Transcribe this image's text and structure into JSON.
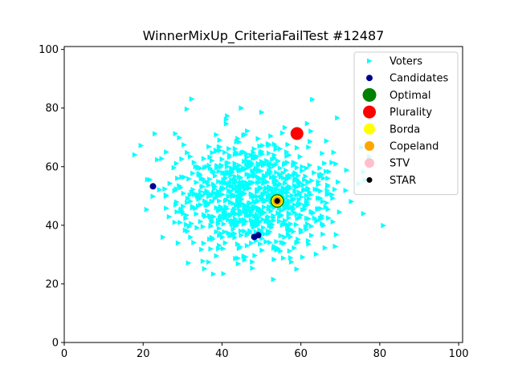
{
  "chart_data": {
    "type": "scatter",
    "title": "WinnerMixUp_CriteriaFailTest #12487",
    "xlim": [
      0,
      101
    ],
    "ylim": [
      0,
      101
    ],
    "x_ticks": [
      0,
      20,
      40,
      60,
      80,
      100
    ],
    "y_ticks": [
      0,
      20,
      40,
      60,
      80,
      100
    ],
    "legend_position": "top-right",
    "voters_cluster": {
      "center": [
        49,
        50
      ],
      "spread": [
        19,
        19
      ],
      "count": 900,
      "seed": 12487
    },
    "series": [
      {
        "name": "Voters",
        "marker": "triangle-right",
        "color": "#00ffff"
      },
      {
        "name": "Candidates",
        "marker": "circle",
        "color": "#00008b",
        "points": [
          [
            22.5,
            53.3
          ],
          [
            48.2,
            36.0
          ],
          [
            49.2,
            36.6
          ],
          [
            54.0,
            48.3
          ]
        ]
      },
      {
        "name": "Optimal",
        "marker": "circle",
        "color": "#008000",
        "points": [
          [
            54.0,
            48.3
          ]
        ]
      },
      {
        "name": "Plurality",
        "marker": "circle",
        "color": "#ff0000",
        "points": [
          [
            59.0,
            71.3
          ]
        ]
      },
      {
        "name": "Borda",
        "marker": "circle",
        "color": "#ffff00",
        "points": [
          [
            54.0,
            48.3
          ]
        ]
      },
      {
        "name": "Copeland",
        "marker": "circle",
        "color": "#ffa500",
        "points": [
          [
            54.0,
            48.3
          ]
        ]
      },
      {
        "name": "STV",
        "marker": "circle",
        "color": "#ffc0cb",
        "points": []
      },
      {
        "name": "STAR",
        "marker": "circle",
        "color": "#000000",
        "points": [
          [
            54.0,
            48.3
          ]
        ]
      }
    ]
  }
}
